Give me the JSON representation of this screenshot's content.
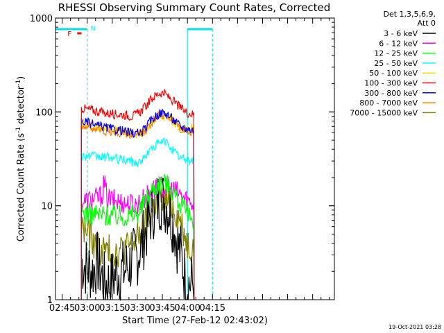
{
  "chart_data": {
    "type": "line",
    "title": "RHESSI Observing Summary Count Rates, Corrected",
    "xlabel": "Start Time (27-Feb-12 02:43:02)",
    "ylabel_main": "Corrected Count Rate (s",
    "ylabel_sup1": "-1",
    "ylabel_mid": " detector",
    "ylabel_sup2": "-1",
    "ylabel_end": ")",
    "yscale": "log",
    "xlim": [
      41,
      208
    ],
    "ylim": [
      1,
      1000
    ],
    "x_ticks": [
      {
        "v": 45,
        "label": "02:45"
      },
      {
        "v": 60,
        "label": "03:00"
      },
      {
        "v": 75,
        "label": "03:15"
      },
      {
        "v": 90,
        "label": "03:30"
      },
      {
        "v": 105,
        "label": "03:45"
      },
      {
        "v": 120,
        "label": "04:00"
      },
      {
        "v": 135,
        "label": "04:15"
      }
    ],
    "y_ticks": [
      {
        "v": 1,
        "label": "1"
      },
      {
        "v": 10,
        "label": "10"
      },
      {
        "v": 100,
        "label": "100"
      },
      {
        "v": 1000,
        "label": "1000"
      }
    ],
    "legend_title": [
      "Det 1,3,5,6,9,",
      "Att 0"
    ],
    "legend_position": "right",
    "timestamp": "19-Oct-2021 03:28",
    "annotations": [
      {
        "text": "N",
        "color": "#00e0e0"
      },
      {
        "text": "F",
        "color": "#ff0000"
      }
    ],
    "night_markers": [
      {
        "start": 41,
        "end": 60,
        "label": "N"
      },
      {
        "start": 120,
        "end": 135,
        "label": ""
      }
    ],
    "flare_marker": {
      "start": 54,
      "end": 56.5,
      "label": "F"
    },
    "series": [
      {
        "name": "3 - 6 keV",
        "color": "#000000",
        "x": [
          56.5,
          60,
          63,
          66,
          70,
          74,
          78,
          82,
          86,
          90,
          93,
          96,
          99,
          102,
          104,
          106,
          108,
          110,
          112,
          114,
          116,
          118,
          120,
          124
        ],
        "y": [
          2.5,
          2.2,
          2,
          2.5,
          1.5,
          1.5,
          2,
          2,
          2.5,
          3,
          4,
          6,
          9,
          11,
          12,
          11,
          10,
          8,
          6,
          4,
          3,
          2,
          1.5,
          1.5
        ]
      },
      {
        "name": "6 - 12 keV",
        "color": "#ff00ff",
        "x": [
          56.5,
          60,
          63,
          66,
          69,
          70,
          72,
          76,
          80,
          84,
          87,
          90,
          93,
          96,
          99,
          102,
          105,
          108,
          111,
          114,
          117,
          120,
          124
        ],
        "y": [
          11,
          11.5,
          12,
          12,
          13,
          18,
          12,
          11.5,
          11,
          10.5,
          10.5,
          10.5,
          11.5,
          13,
          15,
          15.5,
          16,
          15.5,
          15,
          14,
          12.5,
          11.5,
          10.5
        ]
      },
      {
        "name": "12 - 25 keV",
        "color": "#00ff00",
        "x": [
          56.5,
          60,
          64,
          68,
          72,
          76,
          80,
          84,
          88,
          92,
          96,
          99,
          102,
          105,
          108,
          111,
          114,
          117,
          120,
          124
        ],
        "y": [
          8.5,
          8.3,
          8.2,
          8,
          8,
          7.9,
          7.8,
          7.8,
          8,
          9,
          12,
          15,
          17,
          18,
          17,
          15,
          12,
          9.5,
          8,
          7.5
        ]
      },
      {
        "name": "25 - 50 keV",
        "color": "#00ffff",
        "x": [
          56.5,
          60,
          64,
          68,
          72,
          76,
          80,
          84,
          86,
          88,
          91,
          94,
          97,
          100,
          103,
          106,
          108,
          110,
          113,
          116,
          120,
          124
        ],
        "y": [
          34,
          34,
          33.5,
          33,
          33,
          32,
          31,
          30.5,
          30,
          29,
          29,
          32,
          38,
          43,
          46,
          49,
          46,
          42,
          36,
          32,
          31,
          30.5
        ]
      },
      {
        "name": "50 - 100 keV",
        "color": "#ffd700",
        "x": [
          56.5,
          60,
          64,
          68,
          72,
          76,
          80,
          84,
          88,
          91,
          94,
          97,
          100,
          103,
          106,
          108,
          110,
          113,
          116,
          120,
          124
        ],
        "y": [
          75,
          74,
          72,
          69,
          67,
          65,
          64,
          61,
          59,
          58,
          62,
          72,
          82,
          89,
          92,
          88,
          82,
          74,
          68,
          66,
          68
        ]
      },
      {
        "name": "100 - 300 keV",
        "color": "#ff0000",
        "x": [
          56.5,
          60,
          64,
          68,
          72,
          76,
          80,
          84,
          87,
          90,
          93,
          96,
          99,
          102,
          104,
          106,
          108,
          111,
          114,
          117,
          120,
          124
        ],
        "y": [
          110,
          107,
          104,
          100,
          97,
          95,
          94,
          92,
          90,
          95,
          105,
          120,
          140,
          155,
          160,
          158,
          148,
          132,
          118,
          106,
          98,
          94
        ]
      },
      {
        "name": "300 - 800 keV",
        "color": "#0000ff",
        "x": [
          56.5,
          60,
          64,
          68,
          72,
          76,
          80,
          84,
          88,
          91,
          94,
          97,
          100,
          103,
          106,
          108,
          110,
          113,
          116,
          120,
          124
        ],
        "y": [
          79,
          77,
          73,
          70,
          68,
          65,
          64,
          61,
          59,
          59,
          64,
          76,
          88,
          96,
          98,
          95,
          88,
          78,
          70,
          66,
          64
        ]
      },
      {
        "name": "800 - 7000 keV",
        "color": "#ff8000",
        "x": [
          56.5,
          60,
          64,
          68,
          72,
          76,
          80,
          84,
          88,
          91,
          94,
          97,
          100,
          103,
          106,
          108,
          110,
          113,
          116,
          120,
          124
        ],
        "y": [
          72,
          70,
          67,
          64,
          62,
          60,
          59,
          57,
          56,
          56,
          60,
          71,
          84,
          93,
          95,
          92,
          85,
          75,
          66,
          62,
          60
        ]
      },
      {
        "name": "7000 - 15000 keV",
        "color": "#808000",
        "x": [
          56.5,
          60,
          62,
          64,
          66,
          68,
          70,
          74,
          78,
          82,
          86,
          90,
          93,
          96,
          99,
          102,
          105,
          108,
          111,
          114,
          117,
          120,
          124
        ],
        "y": [
          6,
          5.2,
          4.5,
          4,
          3.6,
          3.4,
          3.4,
          3.3,
          3.3,
          3.5,
          3.8,
          4.5,
          5.5,
          7,
          9,
          11,
          11.5,
          11,
          10,
          8,
          6,
          4,
          3.5
        ]
      }
    ]
  }
}
